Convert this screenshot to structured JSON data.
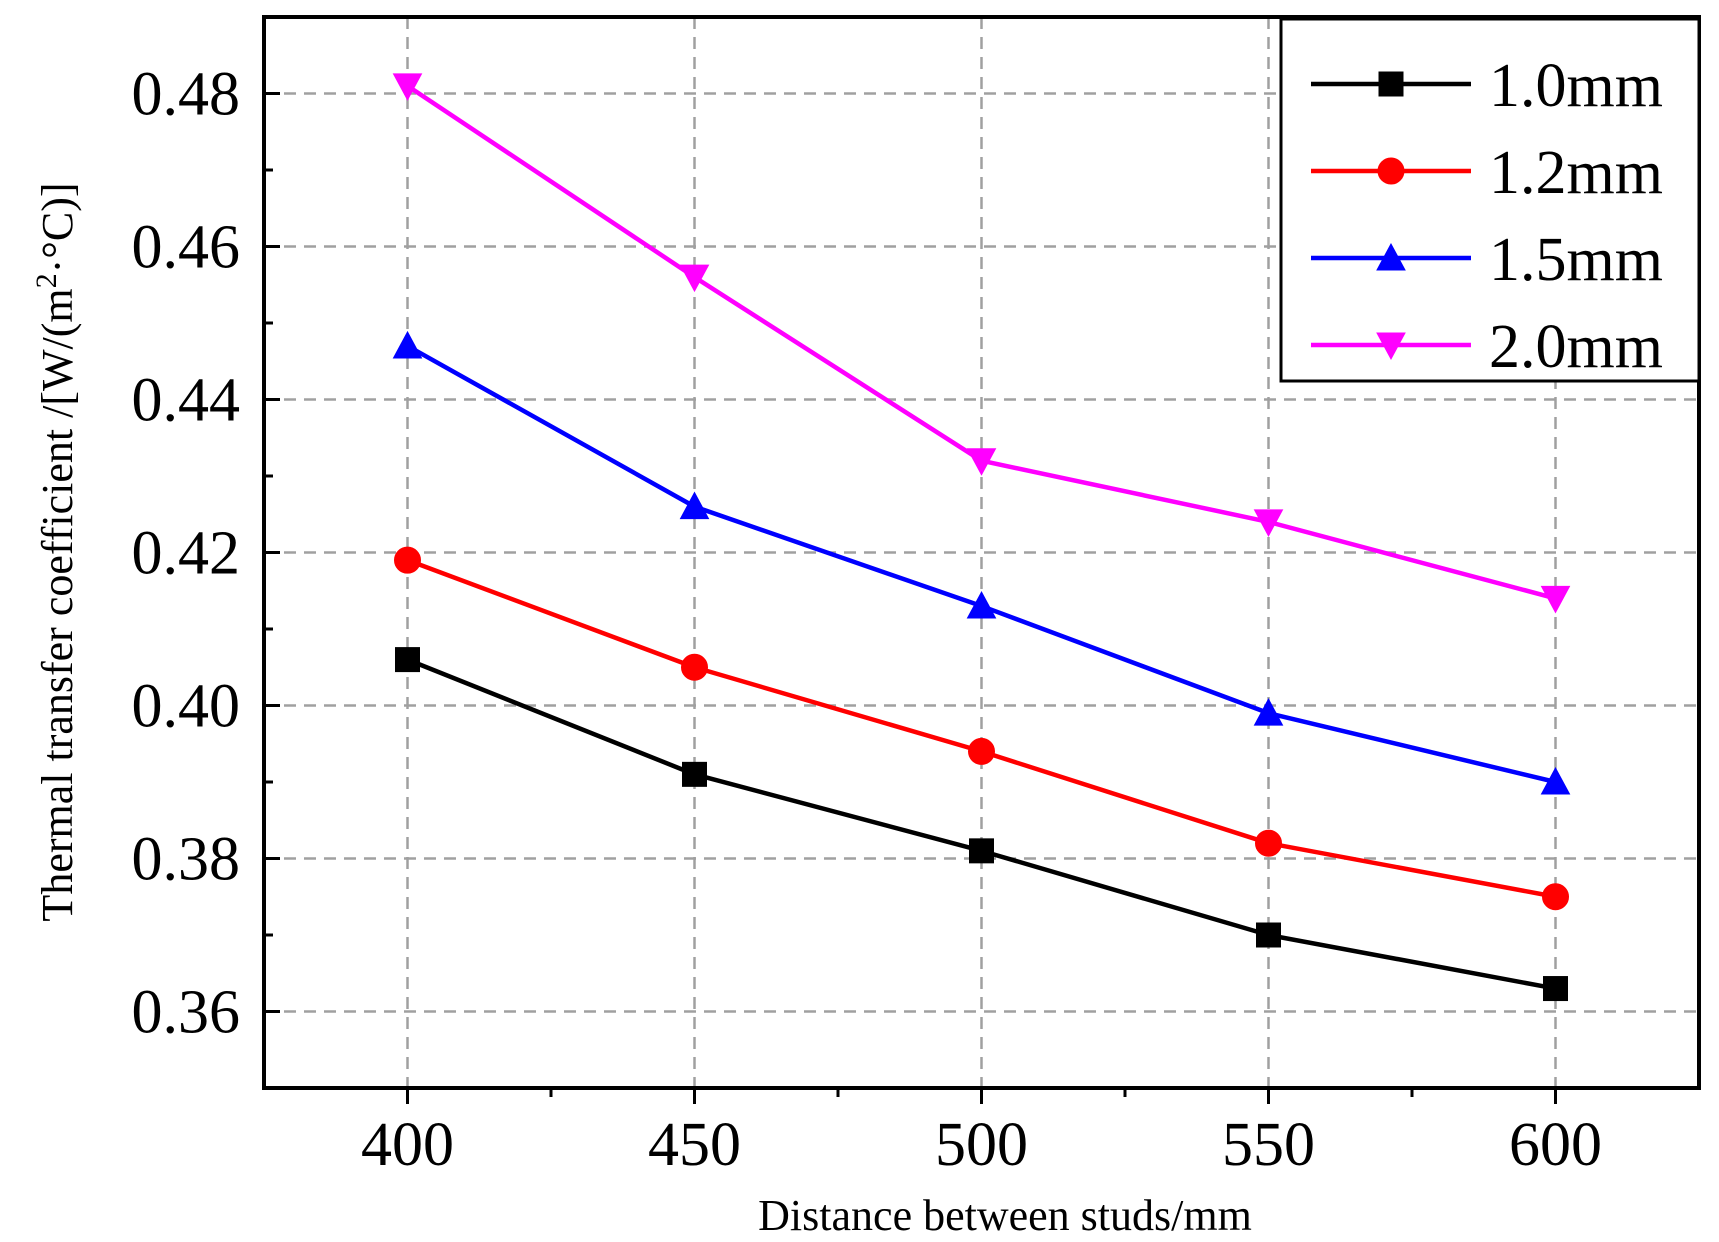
{
  "chart_data": {
    "type": "line",
    "title": "",
    "xlabel": "Distance between studs/mm",
    "ylabel": "Thermal transfer coefficient /[W/(m²·°C)]",
    "ylabel_parts": {
      "prefix": "Thermal transfer coefficient /[W/(m",
      "superscript": "2",
      "suffix": "·°C)]"
    },
    "x": [
      400,
      450,
      500,
      550,
      600
    ],
    "xticks": [
      400,
      450,
      500,
      550,
      600
    ],
    "xtick_labels": [
      "400",
      "450",
      "500",
      "550",
      "600"
    ],
    "xlim": [
      375,
      625
    ],
    "yticks": [
      0.36,
      0.38,
      0.4,
      0.42,
      0.44,
      0.46,
      0.48
    ],
    "ytick_labels": [
      "0.36",
      "0.38",
      "0.40",
      "0.42",
      "0.44",
      "0.46",
      "0.48"
    ],
    "ylim": [
      0.35,
      0.49
    ],
    "grid": true,
    "legend_position": "top-right",
    "series": [
      {
        "name": "1.0mm",
        "color": "#000000",
        "marker": "square",
        "values": [
          0.406,
          0.391,
          0.381,
          0.37,
          0.363
        ]
      },
      {
        "name": "1.2mm",
        "color": "#ff0000",
        "marker": "circle",
        "values": [
          0.419,
          0.405,
          0.394,
          0.382,
          0.375
        ]
      },
      {
        "name": "1.5mm",
        "color": "#0000ff",
        "marker": "triangle-up",
        "values": [
          0.447,
          0.426,
          0.413,
          0.399,
          0.39
        ]
      },
      {
        "name": "2.0mm",
        "color": "#ff00ff",
        "marker": "triangle-down",
        "values": [
          0.481,
          0.456,
          0.432,
          0.424,
          0.414
        ]
      }
    ]
  }
}
